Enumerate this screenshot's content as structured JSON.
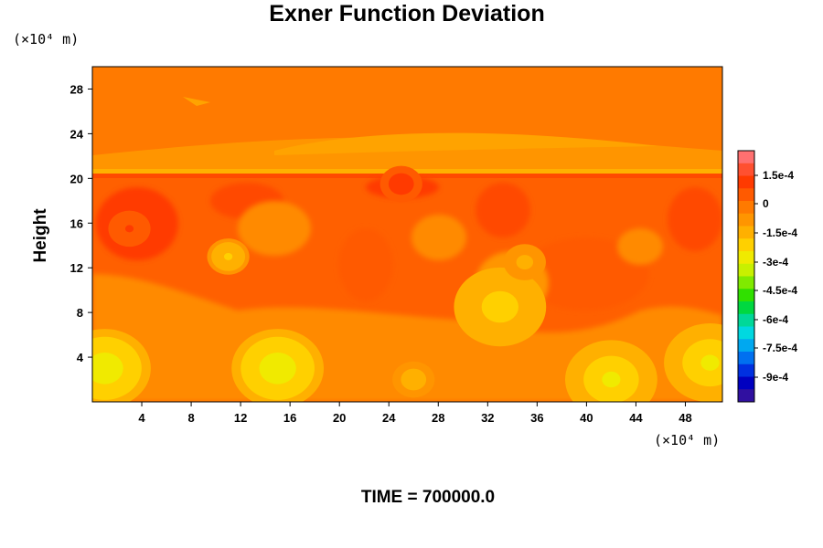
{
  "chart_data": {
    "type": "heatmap",
    "title": "Exner Function Deviation",
    "ylabel": "Height",
    "x_unit_label": "(×10⁴ m)",
    "y_unit_label": "(×10⁴ m)",
    "footer": "TIME = 700000.0",
    "xlim": [
      0,
      51
    ],
    "ylim": [
      0,
      30
    ],
    "x_ticks": [
      "4",
      "8",
      "12",
      "16",
      "20",
      "24",
      "28",
      "32",
      "36",
      "40",
      "44",
      "48"
    ],
    "y_ticks": [
      "4",
      "8",
      "12",
      "16",
      "20",
      "24",
      "28"
    ],
    "colorbar": {
      "range": [
        -0.000105,
        0.00025
      ],
      "tick_labels": [
        "1.5e-4",
        "0",
        "-1.5e-4",
        "-3e-4",
        "-4.5e-4",
        "-6e-4",
        "-7.5e-4",
        "-9e-4"
      ],
      "colors": [
        "#ff7070",
        "#ff5030",
        "#ff3a00",
        "#ff5a00",
        "#ff7a00",
        "#ff9500",
        "#ffb000",
        "#ffd000",
        "#f0ea00",
        "#c8f000",
        "#80ea00",
        "#30e000",
        "#00d840",
        "#00d898",
        "#00d8e0",
        "#00a8f0",
        "#0070f0",
        "#0030e0",
        "#0000c0",
        "#3010a0"
      ]
    },
    "field_features": [
      {
        "x": 1,
        "y": 3,
        "value": -0.00028
      },
      {
        "x": 15,
        "y": 3,
        "value": -0.0003
      },
      {
        "x": 42,
        "y": 2,
        "value": -0.00024
      },
      {
        "x": 50,
        "y": 3.5,
        "value": -0.00027
      },
      {
        "x": 33,
        "y": 8.5,
        "value": -0.00022
      },
      {
        "x": 26,
        "y": 2,
        "value": -0.00014
      },
      {
        "x": 11,
        "y": 13,
        "value": -0.00018
      },
      {
        "x": 35,
        "y": 12.5,
        "value": -0.00012
      },
      {
        "x": 3,
        "y": 15.5,
        "value": 0.00012
      },
      {
        "x": 25,
        "y": 19.5,
        "value": 0.00015
      }
    ]
  }
}
